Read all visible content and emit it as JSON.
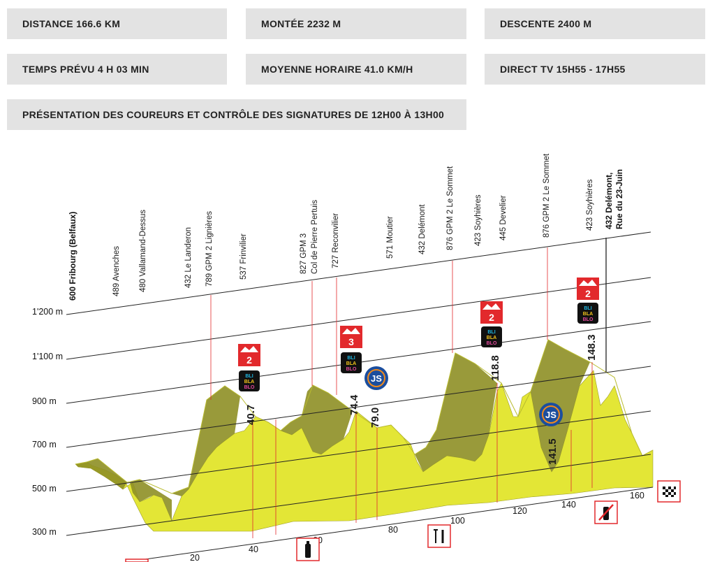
{
  "info": {
    "distance": "DISTANCE 166.6 KM",
    "climb": "MONTÉE 2232 M",
    "descent": "DESCENTE 2400 M",
    "time": "TEMPS PRÉVU 4 H 03 MIN",
    "speed": "MOYENNE HORAIRE 41.0 KM/H",
    "tv": "DIRECT TV 15H55 - 17H55",
    "presentation": "PRÉSENTATION DES COUREURS ET CONTRÔLE DES SIGNATURES DE 12H00 À 13H00"
  },
  "y_axis": [
    "1'200 m",
    "1'100 m",
    "900 m",
    "700 m",
    "500 m",
    "300 m"
  ],
  "x_axis": [
    "20",
    "40",
    "60",
    "80",
    "100",
    "120",
    "140",
    "160"
  ],
  "waypoints": [
    {
      "lines": [
        "600 Fribourg (Belfaux)"
      ],
      "bold": true
    },
    {
      "lines": [
        "489 Avenches"
      ]
    },
    {
      "lines": [
        "480 Vallamand-Dessus"
      ]
    },
    {
      "lines": [
        "432 Le Landeron"
      ]
    },
    {
      "lines": [
        "789 GPM 2 Lignières"
      ]
    },
    {
      "lines": [
        "537 Frinvilier"
      ]
    },
    {
      "lines": [
        "827 GPM 3",
        "Col de Pierre Pertuis"
      ]
    },
    {
      "lines": [
        "727 Reconvilier"
      ]
    },
    {
      "lines": [
        "571 Moutier"
      ]
    },
    {
      "lines": [
        "432 Delémont"
      ]
    },
    {
      "lines": [
        "876 GPM 2 Le Sommet"
      ]
    },
    {
      "lines": [
        "423 Soyhières"
      ]
    },
    {
      "lines": [
        "445 Develier"
      ]
    },
    {
      "lines": [
        "876 GPM 2 Le Sommet"
      ]
    },
    {
      "lines": [
        "423 Soyhières"
      ]
    },
    {
      "lines": [
        "432 Delémont,",
        "Rue du 23-Juin"
      ],
      "bold": true
    }
  ],
  "km_values": [
    "40.7",
    "74.4",
    "79.0",
    "118.8",
    "141.5",
    "148.3"
  ],
  "climbs": [
    {
      "category": "2",
      "sponsor": [
        "BLI",
        "BLA",
        "BLO"
      ]
    },
    {
      "category": "3",
      "sponsor": [
        "BLI",
        "BLA",
        "BLO"
      ]
    },
    {
      "category": "2",
      "sponsor": [
        "BLI",
        "BLA",
        "BLO"
      ]
    },
    {
      "category": "2",
      "sponsor": [
        "BLI",
        "BLA",
        "BLO"
      ]
    }
  ],
  "sprints": [
    "JS",
    "JS"
  ],
  "icons": [
    "water-bottle-icon",
    "feeding-zone-icon",
    "no-bottle-icon",
    "finish-flag-icon"
  ],
  "colors": {
    "terrain_light": "#e3e636",
    "terrain_dark": "#8e8f25",
    "marker_red": "#e2292c",
    "box_grey": "#e3e3e3",
    "sprint_blue": "#1b4e9e",
    "sprint_orange": "#f08a1c"
  }
}
